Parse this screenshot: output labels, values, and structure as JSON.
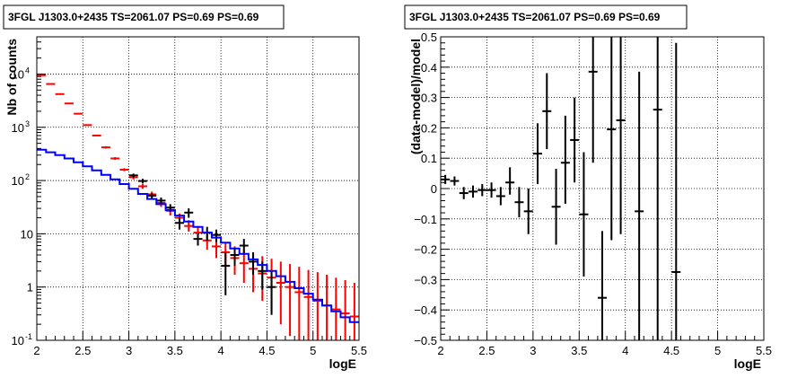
{
  "chart_data": [
    {
      "type": "line",
      "title": "3FGL J1303.0+2435 TS=2061.07 PS=0.69 PS=0.69",
      "xlabel": "logE",
      "ylabel": "Nb of counts",
      "xlim": [
        2,
        5.5
      ],
      "ylim": [
        0.1,
        50000
      ],
      "yscale": "log",
      "grid": true,
      "x_ticks": [
        "2",
        "2.5",
        "3",
        "3.5",
        "4",
        "4.5",
        "5",
        "5.5"
      ],
      "y_ticks": [
        {
          "v": 0.1,
          "label": "10",
          "exp": "-1"
        },
        {
          "v": 1,
          "label": "1",
          "exp": ""
        },
        {
          "v": 10,
          "label": "10",
          "exp": ""
        },
        {
          "v": 100,
          "label": "10",
          "exp": "2"
        },
        {
          "v": 1000,
          "label": "10",
          "exp": "3"
        },
        {
          "v": 10000,
          "label": "10",
          "exp": "4"
        }
      ],
      "series": [
        {
          "color": "#ff0000",
          "style": "errorbar",
          "x": [
            2.05,
            2.15,
            2.25,
            2.35,
            2.45,
            2.55,
            2.65,
            2.75,
            2.85,
            2.95,
            3.05,
            3.15,
            3.25,
            3.35,
            3.45,
            3.55,
            3.65,
            3.75,
            3.85,
            3.95,
            4.05,
            4.15,
            4.25,
            4.35,
            4.45,
            4.55,
            4.65,
            4.75,
            4.85,
            4.95,
            5.05,
            5.15,
            5.25,
            5.35,
            5.45
          ],
          "y": [
            9500,
            6500,
            4200,
            2800,
            1800,
            1100,
            700,
            420,
            260,
            160,
            115,
            78,
            55,
            38,
            27,
            20,
            14,
            10.5,
            7.5,
            5.8,
            4.5,
            3.5,
            2.8,
            2.2,
            1.8,
            1.5,
            1.2,
            1.0,
            0.8,
            0.65,
            0.55,
            0.45,
            0.38,
            0.32,
            0.28
          ],
          "ylo": [
            9400,
            6400,
            4100,
            2750,
            1760,
            1070,
            680,
            400,
            245,
            150,
            105,
            70,
            48,
            32,
            22,
            16,
            11,
            7.5,
            5,
            3.5,
            2.5,
            1.7,
            1.2,
            0.8,
            0.55,
            0.35,
            0.2,
            0.12,
            0.1,
            0.1,
            0.1,
            0.1,
            0.1,
            0.1,
            0.1
          ],
          "yhi": [
            9600,
            6600,
            4300,
            2850,
            1840,
            1130,
            720,
            440,
            275,
            170,
            125,
            86,
            62,
            44,
            32,
            24,
            18,
            14,
            10.5,
            8.5,
            7,
            5.8,
            5,
            4.2,
            3.8,
            3.4,
            3,
            2.7,
            2.4,
            2.1,
            1.9,
            1.7,
            1.5,
            1.35,
            1.2
          ]
        },
        {
          "color": "#000000",
          "style": "errorbar",
          "x": [
            3.05,
            3.15,
            3.25,
            3.35,
            3.45,
            3.55,
            3.65,
            3.75,
            3.85,
            3.95,
            4.05,
            4.15,
            4.25,
            4.35,
            4.45,
            4.55
          ],
          "y": [
            125,
            98,
            52,
            42,
            31,
            16,
            25,
            8,
            10.5,
            9.5,
            2.5,
            4,
            6,
            3,
            2,
            1
          ],
          "ylo": [
            115,
            88,
            46,
            36,
            26,
            12,
            20,
            6,
            7.5,
            7,
            0.7,
            2.5,
            4,
            1.7,
            0.9,
            0.3
          ],
          "yhi": [
            135,
            108,
            58,
            48,
            36,
            20,
            30,
            10,
            13.5,
            12,
            4.5,
            5.5,
            8,
            4.5,
            3,
            2
          ]
        },
        {
          "color": "#0000ff",
          "style": "step",
          "x": [
            2.05,
            2.15,
            2.25,
            2.35,
            2.45,
            2.55,
            2.65,
            2.75,
            2.85,
            2.95,
            3.05,
            3.15,
            3.25,
            3.35,
            3.45,
            3.55,
            3.65,
            3.75,
            3.85,
            3.95,
            4.05,
            4.15,
            4.25,
            4.35,
            4.45,
            4.55,
            4.65,
            4.75,
            4.85,
            4.95,
            5.05,
            5.15,
            5.25,
            5.35,
            5.45
          ],
          "y": [
            380,
            340,
            300,
            260,
            220,
            185,
            155,
            128,
            105,
            86,
            70,
            56,
            45,
            36,
            28,
            22,
            17,
            13.5,
            10.5,
            8.5,
            6.8,
            5.3,
            4.2,
            3.3,
            2.6,
            2.0,
            1.6,
            1.25,
            0.95,
            0.75,
            0.58,
            0.45,
            0.35,
            0.27,
            0.22
          ]
        }
      ]
    },
    {
      "type": "scatter",
      "title": "3FGL J1303.0+2435 TS=2061.07 PS=0.69 PS=0.69",
      "xlabel": "logE",
      "ylabel": "(data-model)/model",
      "xlim": [
        2,
        5.5
      ],
      "ylim": [
        -0.5,
        0.5
      ],
      "grid": true,
      "x_ticks": [
        "2",
        "2.5",
        "3",
        "3.5",
        "4",
        "4.5",
        "5",
        "5.5"
      ],
      "y_ticks": [
        "−0.5",
        "−0.4",
        "−0.3",
        "−0.2",
        "−0.1",
        "0",
        "0.1",
        "0.2",
        "0.3",
        "0.4",
        "0.5"
      ],
      "y_tick_values": [
        -0.5,
        -0.4,
        -0.3,
        -0.2,
        -0.1,
        0,
        0.1,
        0.2,
        0.3,
        0.4,
        0.5
      ],
      "series": [
        {
          "color": "#000000",
          "style": "errorbar",
          "x": [
            2.05,
            2.15,
            2.25,
            2.35,
            2.45,
            2.55,
            2.65,
            2.75,
            2.85,
            2.95,
            3.05,
            3.15,
            3.25,
            3.35,
            3.45,
            3.55,
            3.65,
            3.75,
            3.85,
            3.95,
            4.15,
            4.35,
            4.55
          ],
          "y": [
            0.03,
            0.025,
            -0.015,
            -0.01,
            -0.005,
            -0.005,
            -0.025,
            0.02,
            -0.045,
            -0.075,
            0.115,
            0.255,
            -0.06,
            0.085,
            0.16,
            -0.085,
            0.385,
            -0.36,
            0.195,
            0.225,
            -0.075,
            0.26,
            -0.275
          ],
          "ylo": [
            0.015,
            0.01,
            -0.035,
            -0.03,
            -0.025,
            -0.03,
            -0.055,
            -0.02,
            -0.095,
            -0.15,
            0.015,
            0.13,
            -0.185,
            -0.05,
            0.02,
            -0.29,
            0.085,
            -0.5,
            -0.17,
            -0.15,
            -0.5,
            -0.5,
            -0.5
          ],
          "yhi": [
            0.045,
            0.04,
            0.005,
            0.01,
            0.015,
            0.02,
            0.005,
            0.07,
            0.005,
            0.0,
            0.215,
            0.38,
            0.065,
            0.24,
            0.3,
            0.12,
            0.5,
            -0.14,
            0.5,
            0.5,
            0.385,
            0.5,
            0.48
          ]
        }
      ]
    }
  ]
}
